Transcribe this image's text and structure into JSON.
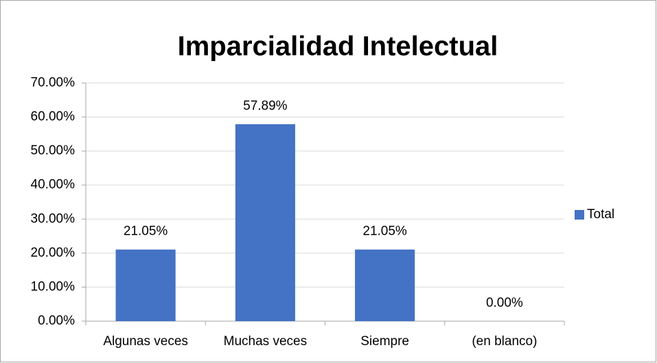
{
  "chart_data": {
    "type": "bar",
    "title": "Imparcialidad Intelectual",
    "categories": [
      "Algunas veces",
      "Muchas veces",
      "Siempre",
      "(en blanco)"
    ],
    "series": [
      {
        "name": "Total",
        "color": "#4472c4",
        "values": [
          21.05,
          57.89,
          21.05,
          0
        ],
        "value_labels": [
          "21.05%",
          "57.89%",
          "21.05%",
          "0.00%"
        ]
      }
    ],
    "ylim": [
      0,
      70
    ],
    "yticks": [
      {
        "value": 0,
        "label": "0.00%"
      },
      {
        "value": 10,
        "label": "10.00%"
      },
      {
        "value": 20,
        "label": "20.00%"
      },
      {
        "value": 30,
        "label": "30.00%"
      },
      {
        "value": 40,
        "label": "40.00%"
      },
      {
        "value": 50,
        "label": "50.00%"
      },
      {
        "value": 60,
        "label": "60.00%"
      },
      {
        "value": 70,
        "label": "70.00%"
      }
    ],
    "grid": true,
    "legend": "right"
  }
}
